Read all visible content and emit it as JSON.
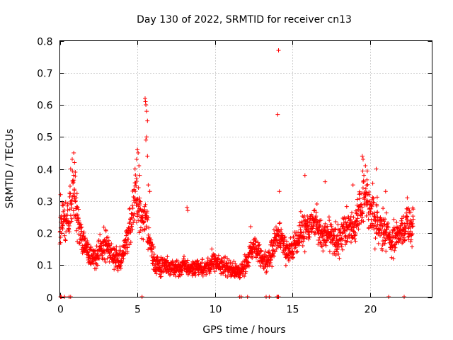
{
  "chart_data": {
    "type": "scatter",
    "title": "Day 130 of 2022, SRMTID for receiver cn13",
    "xlabel": "GPS time / hours",
    "ylabel": "SRMTID / TECUs",
    "xlim": [
      0,
      24
    ],
    "ylim": [
      0,
      0.8
    ],
    "xticks": [
      0,
      5,
      10,
      15,
      20
    ],
    "yticks": [
      0,
      0.1,
      0.2,
      0.3,
      0.4,
      0.5,
      0.6,
      0.7,
      0.8
    ],
    "xtick_labels": [
      "0",
      "5",
      "10",
      "15",
      "20"
    ],
    "ytick_labels": [
      "0",
      "0.1",
      "0.2",
      "0.3",
      "0.4",
      "0.5",
      "0.6",
      "0.7",
      "0.8"
    ],
    "grid": true,
    "marker": "+",
    "series_color": "#ff0000",
    "trend": [
      [
        0.0,
        0.22
      ],
      [
        0.3,
        0.25
      ],
      [
        0.5,
        0.22
      ],
      [
        0.8,
        0.33
      ],
      [
        1.0,
        0.3
      ],
      [
        1.3,
        0.18
      ],
      [
        1.6,
        0.17
      ],
      [
        1.9,
        0.13
      ],
      [
        2.2,
        0.12
      ],
      [
        2.6,
        0.15
      ],
      [
        3.0,
        0.16
      ],
      [
        3.3,
        0.13
      ],
      [
        3.7,
        0.12
      ],
      [
        4.0,
        0.12
      ],
      [
        4.3,
        0.18
      ],
      [
        4.6,
        0.24
      ],
      [
        4.9,
        0.33
      ],
      [
        5.1,
        0.27
      ],
      [
        5.3,
        0.22
      ],
      [
        5.5,
        0.26
      ],
      [
        5.7,
        0.2
      ],
      [
        6.0,
        0.12
      ],
      [
        6.5,
        0.1
      ],
      [
        7.0,
        0.1
      ],
      [
        7.5,
        0.09
      ],
      [
        8.0,
        0.1
      ],
      [
        8.5,
        0.09
      ],
      [
        9.0,
        0.09
      ],
      [
        9.5,
        0.09
      ],
      [
        10.0,
        0.11
      ],
      [
        10.5,
        0.1
      ],
      [
        11.0,
        0.09
      ],
      [
        11.5,
        0.08
      ],
      [
        12.0,
        0.1
      ],
      [
        12.3,
        0.14
      ],
      [
        12.6,
        0.16
      ],
      [
        13.0,
        0.12
      ],
      [
        13.3,
        0.11
      ],
      [
        13.6,
        0.13
      ],
      [
        14.0,
        0.18
      ],
      [
        14.3,
        0.2
      ],
      [
        14.6,
        0.13
      ],
      [
        15.0,
        0.16
      ],
      [
        15.3,
        0.18
      ],
      [
        15.6,
        0.21
      ],
      [
        16.0,
        0.22
      ],
      [
        16.3,
        0.24
      ],
      [
        16.6,
        0.22
      ],
      [
        17.0,
        0.19
      ],
      [
        17.3,
        0.2
      ],
      [
        17.6,
        0.18
      ],
      [
        18.0,
        0.17
      ],
      [
        18.3,
        0.21
      ],
      [
        18.6,
        0.22
      ],
      [
        19.0,
        0.22
      ],
      [
        19.3,
        0.27
      ],
      [
        19.6,
        0.3
      ],
      [
        20.0,
        0.28
      ],
      [
        20.3,
        0.24
      ],
      [
        20.6,
        0.22
      ],
      [
        21.0,
        0.2
      ],
      [
        21.3,
        0.17
      ],
      [
        21.6,
        0.19
      ],
      [
        22.0,
        0.2
      ],
      [
        22.3,
        0.22
      ],
      [
        22.7,
        0.23
      ]
    ],
    "spikes": [
      [
        0.05,
        0.32
      ],
      [
        0.7,
        0.4
      ],
      [
        0.8,
        0.43
      ],
      [
        0.9,
        0.45
      ],
      [
        0.95,
        0.42
      ],
      [
        1.0,
        0.39
      ],
      [
        4.85,
        0.4
      ],
      [
        4.95,
        0.43
      ],
      [
        5.0,
        0.46
      ],
      [
        5.05,
        0.45
      ],
      [
        5.1,
        0.41
      ],
      [
        5.15,
        0.38
      ],
      [
        5.5,
        0.62
      ],
      [
        5.52,
        0.61
      ],
      [
        5.55,
        0.6
      ],
      [
        5.6,
        0.58
      ],
      [
        5.65,
        0.55
      ],
      [
        5.6,
        0.5
      ],
      [
        5.55,
        0.49
      ],
      [
        5.65,
        0.44
      ],
      [
        5.7,
        0.35
      ],
      [
        5.8,
        0.33
      ],
      [
        8.2,
        0.28
      ],
      [
        8.25,
        0.27
      ],
      [
        14.1,
        0.77
      ],
      [
        14.05,
        0.57
      ],
      [
        14.15,
        0.33
      ],
      [
        19.5,
        0.44
      ],
      [
        19.55,
        0.43
      ],
      [
        19.7,
        0.41
      ],
      [
        19.6,
        0.38
      ],
      [
        20.4,
        0.4
      ],
      [
        15.8,
        0.38
      ],
      [
        17.1,
        0.36
      ],
      [
        18.9,
        0.35
      ],
      [
        21.0,
        0.33
      ],
      [
        22.4,
        0.31
      ],
      [
        12.3,
        0.22
      ],
      [
        13.8,
        0.21
      ],
      [
        9.8,
        0.15
      ]
    ],
    "baseline": [
      0.05,
      0.1,
      0.3,
      0.6,
      0.7,
      5.3,
      11.6,
      11.7,
      12.1,
      13.3,
      13.5,
      14.0,
      14.05,
      14.1,
      21.2,
      22.2
    ]
  }
}
